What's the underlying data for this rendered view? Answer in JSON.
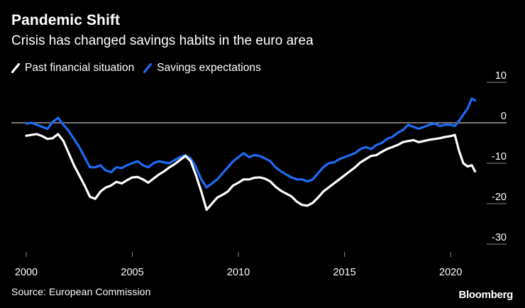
{
  "chart_data": {
    "type": "line",
    "title": "Pandemic Shift",
    "subtitle": "Crisis has changed savings habits in the euro area",
    "xlabel": "",
    "ylabel": "",
    "xlim": [
      2000,
      2021.5
    ],
    "ylim": [
      -30,
      10
    ],
    "x_ticks": [
      {
        "value": 2000,
        "label": "2000"
      },
      {
        "value": 2005,
        "label": "2005"
      },
      {
        "value": 2010,
        "label": "2010"
      },
      {
        "value": 2015,
        "label": "2015"
      },
      {
        "value": 2020,
        "label": "2020"
      }
    ],
    "y_ticks": [
      {
        "value": 10,
        "label": "10"
      },
      {
        "value": 0,
        "label": "0"
      },
      {
        "value": -10,
        "label": "-10"
      },
      {
        "value": -20,
        "label": "-20"
      },
      {
        "value": -30,
        "label": "-30"
      }
    ],
    "reference_line": 0,
    "legend_position": "top-left",
    "series": [
      {
        "name": "Past financial situation",
        "color": "#ffffff",
        "points": [
          [
            2000.0,
            -3.2
          ],
          [
            2000.25,
            -3.0
          ],
          [
            2000.5,
            -2.8
          ],
          [
            2000.75,
            -3.3
          ],
          [
            2001.0,
            -4.0
          ],
          [
            2001.25,
            -3.8
          ],
          [
            2001.5,
            -2.8
          ],
          [
            2001.75,
            -4.5
          ],
          [
            2002.0,
            -7.5
          ],
          [
            2002.25,
            -10.5
          ],
          [
            2002.5,
            -13.0
          ],
          [
            2002.75,
            -15.5
          ],
          [
            2003.0,
            -18.3
          ],
          [
            2003.25,
            -18.8
          ],
          [
            2003.5,
            -17.0
          ],
          [
            2003.75,
            -16.0
          ],
          [
            2004.0,
            -15.5
          ],
          [
            2004.25,
            -14.6
          ],
          [
            2004.5,
            -15.0
          ],
          [
            2004.75,
            -14.2
          ],
          [
            2005.0,
            -13.5
          ],
          [
            2005.25,
            -13.4
          ],
          [
            2005.5,
            -14.0
          ],
          [
            2005.75,
            -14.8
          ],
          [
            2006.0,
            -13.8
          ],
          [
            2006.25,
            -12.8
          ],
          [
            2006.5,
            -12.0
          ],
          [
            2006.75,
            -11.0
          ],
          [
            2007.0,
            -10.2
          ],
          [
            2007.25,
            -9.2
          ],
          [
            2007.5,
            -8.2
          ],
          [
            2007.75,
            -9.5
          ],
          [
            2008.0,
            -13.0
          ],
          [
            2008.25,
            -17.0
          ],
          [
            2008.5,
            -21.5
          ],
          [
            2008.75,
            -20.0
          ],
          [
            2009.0,
            -18.5
          ],
          [
            2009.25,
            -17.8
          ],
          [
            2009.5,
            -17.0
          ],
          [
            2009.75,
            -15.5
          ],
          [
            2010.0,
            -14.8
          ],
          [
            2010.25,
            -14.0
          ],
          [
            2010.5,
            -14.0
          ],
          [
            2010.75,
            -13.6
          ],
          [
            2011.0,
            -13.5
          ],
          [
            2011.25,
            -13.8
          ],
          [
            2011.5,
            -14.5
          ],
          [
            2011.75,
            -15.8
          ],
          [
            2012.0,
            -16.8
          ],
          [
            2012.25,
            -17.5
          ],
          [
            2012.5,
            -18.2
          ],
          [
            2012.75,
            -19.5
          ],
          [
            2013.0,
            -20.3
          ],
          [
            2013.25,
            -20.5
          ],
          [
            2013.5,
            -19.8
          ],
          [
            2013.75,
            -18.5
          ],
          [
            2014.0,
            -17.0
          ],
          [
            2014.25,
            -16.0
          ],
          [
            2014.5,
            -15.0
          ],
          [
            2014.75,
            -14.0
          ],
          [
            2015.0,
            -13.0
          ],
          [
            2015.25,
            -12.0
          ],
          [
            2015.5,
            -11.0
          ],
          [
            2015.75,
            -9.8
          ],
          [
            2016.0,
            -9.0
          ],
          [
            2016.25,
            -8.2
          ],
          [
            2016.5,
            -8.0
          ],
          [
            2016.75,
            -7.2
          ],
          [
            2017.0,
            -6.5
          ],
          [
            2017.25,
            -6.0
          ],
          [
            2017.5,
            -5.5
          ],
          [
            2017.75,
            -4.8
          ],
          [
            2018.0,
            -4.5
          ],
          [
            2018.25,
            -4.3
          ],
          [
            2018.5,
            -4.8
          ],
          [
            2018.75,
            -4.5
          ],
          [
            2019.0,
            -4.2
          ],
          [
            2019.25,
            -4.0
          ],
          [
            2019.5,
            -3.8
          ],
          [
            2019.75,
            -3.5
          ],
          [
            2020.0,
            -3.3
          ],
          [
            2020.2,
            -3.0
          ],
          [
            2020.4,
            -7.0
          ],
          [
            2020.6,
            -10.0
          ],
          [
            2020.8,
            -10.8
          ],
          [
            2021.0,
            -10.5
          ],
          [
            2021.15,
            -12.0
          ]
        ]
      },
      {
        "name": "Savings expectations",
        "color": "#1d6cf5",
        "points": [
          [
            2000.0,
            -0.2
          ],
          [
            2000.25,
            0.0
          ],
          [
            2000.5,
            -0.5
          ],
          [
            2000.75,
            -1.0
          ],
          [
            2001.0,
            -1.5
          ],
          [
            2001.25,
            0.2
          ],
          [
            2001.5,
            1.2
          ],
          [
            2001.75,
            -0.5
          ],
          [
            2002.0,
            -2.0
          ],
          [
            2002.25,
            -4.0
          ],
          [
            2002.5,
            -6.0
          ],
          [
            2002.75,
            -8.5
          ],
          [
            2003.0,
            -11.0
          ],
          [
            2003.25,
            -11.0
          ],
          [
            2003.5,
            -10.5
          ],
          [
            2003.75,
            -11.8
          ],
          [
            2004.0,
            -12.2
          ],
          [
            2004.25,
            -11.0
          ],
          [
            2004.5,
            -11.2
          ],
          [
            2004.75,
            -10.5
          ],
          [
            2005.0,
            -10.0
          ],
          [
            2005.25,
            -9.5
          ],
          [
            2005.5,
            -10.5
          ],
          [
            2005.75,
            -11.0
          ],
          [
            2006.0,
            -10.0
          ],
          [
            2006.25,
            -9.5
          ],
          [
            2006.5,
            -9.8
          ],
          [
            2006.75,
            -10.0
          ],
          [
            2007.0,
            -9.2
          ],
          [
            2007.25,
            -8.5
          ],
          [
            2007.5,
            -8.0
          ],
          [
            2007.75,
            -8.8
          ],
          [
            2008.0,
            -11.0
          ],
          [
            2008.25,
            -14.0
          ],
          [
            2008.5,
            -16.0
          ],
          [
            2008.75,
            -15.0
          ],
          [
            2009.0,
            -14.0
          ],
          [
            2009.25,
            -12.5
          ],
          [
            2009.5,
            -11.0
          ],
          [
            2009.75,
            -9.5
          ],
          [
            2010.0,
            -8.5
          ],
          [
            2010.25,
            -7.5
          ],
          [
            2010.5,
            -8.5
          ],
          [
            2010.75,
            -8.0
          ],
          [
            2011.0,
            -8.2
          ],
          [
            2011.25,
            -8.8
          ],
          [
            2011.5,
            -9.5
          ],
          [
            2011.75,
            -11.0
          ],
          [
            2012.0,
            -12.0
          ],
          [
            2012.25,
            -12.8
          ],
          [
            2012.5,
            -13.5
          ],
          [
            2012.75,
            -14.0
          ],
          [
            2013.0,
            -14.0
          ],
          [
            2013.25,
            -14.5
          ],
          [
            2013.5,
            -14.0
          ],
          [
            2013.75,
            -12.5
          ],
          [
            2014.0,
            -11.0
          ],
          [
            2014.25,
            -10.0
          ],
          [
            2014.5,
            -9.8
          ],
          [
            2014.75,
            -9.0
          ],
          [
            2015.0,
            -8.5
          ],
          [
            2015.25,
            -8.0
          ],
          [
            2015.5,
            -7.5
          ],
          [
            2015.75,
            -6.5
          ],
          [
            2016.0,
            -6.0
          ],
          [
            2016.25,
            -6.5
          ],
          [
            2016.5,
            -5.5
          ],
          [
            2016.75,
            -5.0
          ],
          [
            2017.0,
            -4.0
          ],
          [
            2017.25,
            -3.5
          ],
          [
            2017.5,
            -2.5
          ],
          [
            2017.75,
            -1.8
          ],
          [
            2018.0,
            -0.5
          ],
          [
            2018.25,
            -1.0
          ],
          [
            2018.5,
            -1.5
          ],
          [
            2018.75,
            -1.0
          ],
          [
            2019.0,
            -0.5
          ],
          [
            2019.25,
            -0.2
          ],
          [
            2019.5,
            -0.8
          ],
          [
            2019.75,
            -0.5
          ],
          [
            2020.0,
            -0.5
          ],
          [
            2020.2,
            -0.8
          ],
          [
            2020.4,
            0.5
          ],
          [
            2020.6,
            2.0
          ],
          [
            2020.8,
            3.5
          ],
          [
            2021.0,
            6.0
          ],
          [
            2021.15,
            5.5
          ]
        ]
      }
    ]
  },
  "footer": {
    "source": "Source: European Commission",
    "brand": "Bloomberg"
  }
}
